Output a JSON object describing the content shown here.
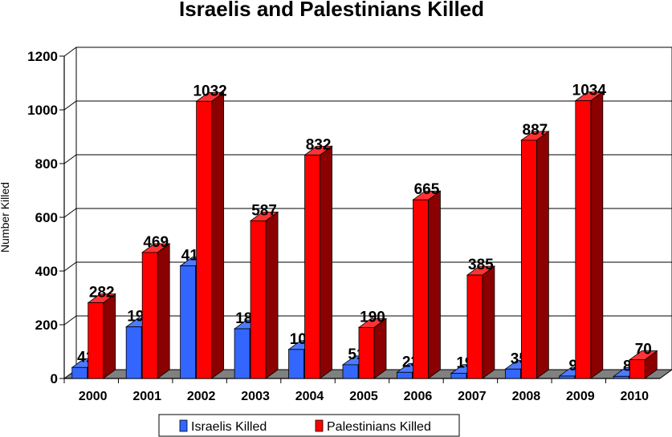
{
  "chart_data": {
    "type": "bar",
    "title": "Israelis and Palestinians Killed",
    "xlabel": "",
    "ylabel": "Number Killed",
    "categories": [
      "2000",
      "2001",
      "2002",
      "2003",
      "2004",
      "2005",
      "2006",
      "2007",
      "2008",
      "2009",
      "2010"
    ],
    "series": [
      {
        "name": "Israelis Killed",
        "color": "#3366ff",
        "values": [
          41,
          192,
          419,
          185,
          108,
          51,
          23,
          19,
          35,
          9,
          8
        ]
      },
      {
        "name": "Palestinians Killed",
        "color": "#ff0000",
        "values": [
          282,
          469,
          1032,
          587,
          832,
          190,
          665,
          385,
          887,
          1034,
          70
        ]
      }
    ],
    "ylim": [
      0,
      1200
    ],
    "yticks": [
      0,
      200,
      400,
      600,
      800,
      1000,
      1200
    ],
    "grid": true,
    "legend": "bottom"
  }
}
